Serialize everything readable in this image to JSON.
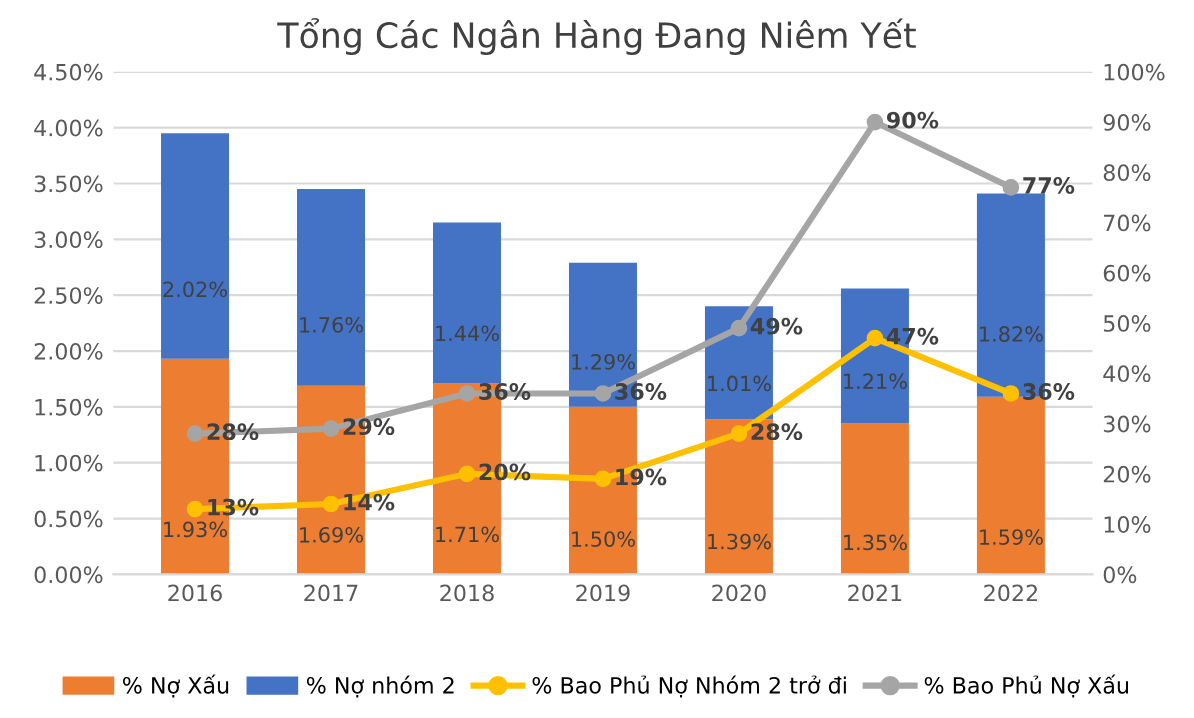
{
  "chart_data": {
    "type": "bar",
    "title": "Tổng Các Ngân Hàng Đang Niêm Yết",
    "categories": [
      "2016",
      "2017",
      "2018",
      "2019",
      "2020",
      "2021",
      "2022"
    ],
    "stacked": true,
    "series": [
      {
        "name": "% Nợ Xấu",
        "color": "#ed7d31",
        "values": [
          1.93,
          1.69,
          1.71,
          1.5,
          1.39,
          1.35,
          1.59
        ],
        "value_labels": [
          "1.93%",
          "1.69%",
          "1.71%",
          "1.50%",
          "1.39%",
          "1.35%",
          "1.59%"
        ]
      },
      {
        "name": "% Nợ nhóm 2",
        "color": "#4472c4",
        "values": [
          2.02,
          1.76,
          1.44,
          1.29,
          1.01,
          1.21,
          1.82
        ],
        "value_labels": [
          "2.02%",
          "1.76%",
          "1.44%",
          "1.29%",
          "1.01%",
          "1.21%",
          "1.82%"
        ]
      },
      {
        "name": "% Bao Phủ Nợ Nhóm 2 trở đi",
        "type": "line",
        "axis": "y2",
        "color": "#ffc000",
        "marker": "circle",
        "values": [
          13,
          14,
          20,
          19,
          28,
          47,
          36
        ],
        "value_labels": [
          "13%",
          "14%",
          "20%",
          "19%",
          "28%",
          "47%",
          "36%"
        ]
      },
      {
        "name": "% Bao Phủ Nợ Xấu",
        "type": "line",
        "axis": "y2",
        "color": "#a5a5a5",
        "marker": "circle",
        "values": [
          28,
          29,
          36,
          36,
          49,
          90,
          77
        ],
        "value_labels": [
          "28%",
          "29%",
          "36%",
          "36%",
          "49%",
          "90%",
          "77%"
        ]
      }
    ],
    "ylim": [
      0,
      4.5
    ],
    "yticks": [
      {
        "value": 0,
        "label": "0.00%"
      },
      {
        "value": 0.5,
        "label": "0.50%"
      },
      {
        "value": 1,
        "label": "1.00%"
      },
      {
        "value": 1.5,
        "label": "1.50%"
      },
      {
        "value": 2,
        "label": "2.00%"
      },
      {
        "value": 2.5,
        "label": "2.50%"
      },
      {
        "value": 3,
        "label": "3.00%"
      },
      {
        "value": 3.5,
        "label": "3.50%"
      },
      {
        "value": 4,
        "label": "4.00%"
      },
      {
        "value": 4.5,
        "label": "4.50%"
      }
    ],
    "y2lim": [
      0,
      100
    ],
    "y2ticks": [
      {
        "value": 0,
        "label": "0%"
      },
      {
        "value": 10,
        "label": "10%"
      },
      {
        "value": 20,
        "label": "20%"
      },
      {
        "value": 30,
        "label": "30%"
      },
      {
        "value": 40,
        "label": "40%"
      },
      {
        "value": 50,
        "label": "50%"
      },
      {
        "value": 60,
        "label": "60%"
      },
      {
        "value": 70,
        "label": "70%"
      },
      {
        "value": 80,
        "label": "80%"
      },
      {
        "value": 90,
        "label": "90%"
      },
      {
        "value": 100,
        "label": "100%"
      }
    ],
    "grid": "y",
    "legend": "bottom"
  }
}
